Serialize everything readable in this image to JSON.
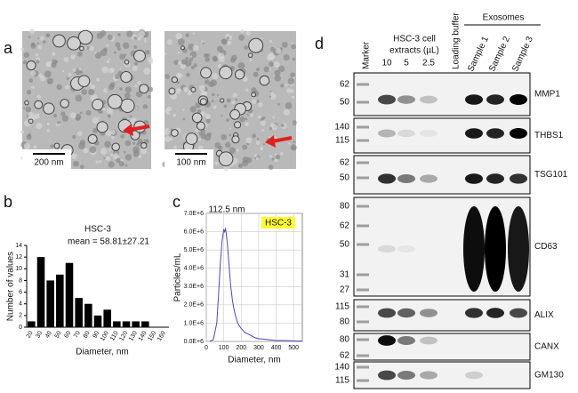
{
  "panel_labels": [
    "a",
    "b",
    "c",
    "d"
  ],
  "tem": {
    "scale_bars": [
      "200 nm",
      "100 nm"
    ]
  },
  "chart_data": [
    {
      "type": "bar",
      "title": "HSC-3",
      "subtitle": "mean = 58.81±27.21",
      "x_label": "Diameter, nm",
      "y_label": "Number of values",
      "categories": [
        "20",
        "30",
        "40",
        "50",
        "60",
        "70",
        "80",
        "90",
        "100",
        "110",
        "120",
        "130",
        "140",
        "150",
        "160"
      ],
      "values": [
        1,
        12,
        8,
        9,
        11,
        5,
        4,
        2,
        3,
        1,
        1,
        1,
        1,
        0,
        0
      ],
      "color": "#000000",
      "ylim": [
        0,
        14
      ],
      "yticks": [
        0,
        2,
        4,
        6,
        8,
        10,
        12,
        14
      ]
    },
    {
      "type": "line",
      "title": "112.5 nm",
      "x_label": "Diameter, nm",
      "y_label": "Particles/mL",
      "x": [
        20,
        40,
        60,
        70,
        80,
        90,
        100,
        105,
        110,
        120,
        130,
        140,
        150,
        160,
        170,
        180,
        200,
        220,
        240,
        260,
        280,
        300,
        350,
        400,
        450,
        500,
        550
      ],
      "series": [
        {
          "name": "HSC-3",
          "color": "#4a4ab8",
          "values": [
            0,
            100000,
            1000000,
            2500000,
            4200000,
            5500000,
            6100000,
            6000000,
            6200000,
            5400000,
            4200000,
            3000000,
            2200000,
            1700000,
            1300000,
            1000000,
            700000,
            500000,
            400000,
            300000,
            200000,
            150000,
            100000,
            50000,
            50000,
            30000,
            20000
          ]
        }
      ],
      "xlim": [
        0,
        550
      ],
      "xticks": [
        0,
        100,
        200,
        300,
        400,
        500
      ],
      "ylim": [
        0,
        7000000
      ],
      "yticks": [
        {
          "value": 0,
          "label": "0.0E+6"
        },
        {
          "value": 1000000,
          "label": "1.0E+6"
        },
        {
          "value": 2000000,
          "label": "2.0E+6"
        },
        {
          "value": 3000000,
          "label": "3.0E+6"
        },
        {
          "value": 4000000,
          "label": "4.0E+6"
        },
        {
          "value": 5000000,
          "label": "5.0E+6"
        },
        {
          "value": 6000000,
          "label": "6.0E+6"
        },
        {
          "value": 7000000,
          "label": "7.0E+6"
        }
      ],
      "grid": true,
      "legend_position": "upper right"
    }
  ],
  "blot": {
    "marker": "Marker",
    "extracts": [
      "HSC-3 cell",
      "extracts (µL)"
    ],
    "volumes": [
      "10",
      "5",
      "2.5"
    ],
    "loading": "Loading buffer",
    "exosomes": "Exosomes",
    "samples": [
      "Sample 1",
      "Sample 2",
      "Sample 3"
    ],
    "rows": [
      {
        "protein": "MMP1",
        "markers": [
          62,
          50
        ]
      },
      {
        "protein": "THBS1",
        "markers": [
          140,
          115
        ]
      },
      {
        "protein": "TSG101",
        "markers": [
          62,
          50
        ]
      },
      {
        "protein": "CD63",
        "markers": [
          80,
          62,
          50,
          31,
          27
        ]
      },
      {
        "protein": "ALIX",
        "markers": [
          115,
          80
        ]
      },
      {
        "protein": "CANX",
        "markers": [
          80,
          62
        ]
      },
      {
        "protein": "GM130",
        "markers": [
          140,
          115
        ]
      }
    ]
  }
}
